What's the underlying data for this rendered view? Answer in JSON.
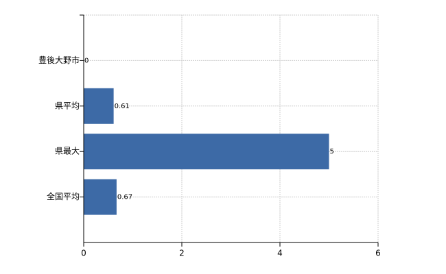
{
  "chart_data": {
    "type": "hbar",
    "categories": [
      "豊後大野市",
      "県平均",
      "県最大",
      "全国平均"
    ],
    "values": [
      0,
      0.61,
      5,
      0.67
    ],
    "color": "#3d6aa6",
    "xlim": [
      0,
      6
    ],
    "xticks": [
      0,
      2,
      4,
      6
    ],
    "grid": true
  }
}
